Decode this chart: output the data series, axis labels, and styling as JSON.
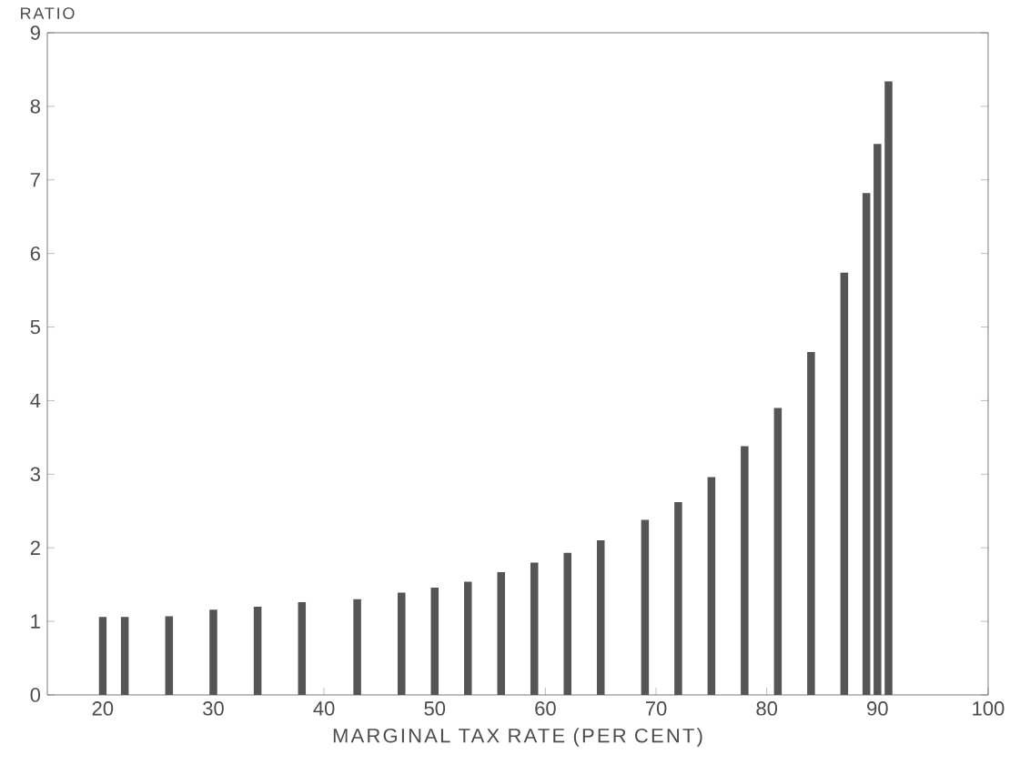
{
  "chart_data": {
    "type": "bar",
    "xlabel": "MARGINAL TAX RATE (PER CENT)",
    "ylabel": "RATIO",
    "x": [
      20,
      22,
      26,
      30,
      34,
      38,
      43,
      47,
      50,
      53,
      56,
      59,
      62,
      65,
      69,
      72,
      75,
      78,
      81,
      84,
      87,
      89,
      90,
      91
    ],
    "values": [
      1.06,
      1.06,
      1.07,
      1.16,
      1.2,
      1.26,
      1.3,
      1.39,
      1.46,
      1.54,
      1.67,
      1.8,
      1.93,
      2.1,
      2.38,
      2.62,
      2.96,
      3.38,
      3.9,
      4.66,
      5.74,
      6.82,
      7.49,
      8.34
    ],
    "color": "#555555",
    "xlim": [
      15,
      100
    ],
    "xticks": [
      20,
      30,
      40,
      50,
      60,
      70,
      80,
      90,
      100
    ],
    "ylim": [
      0,
      9
    ],
    "yticks": [
      0,
      1,
      2,
      3,
      4,
      5,
      6,
      7,
      8,
      9
    ]
  }
}
